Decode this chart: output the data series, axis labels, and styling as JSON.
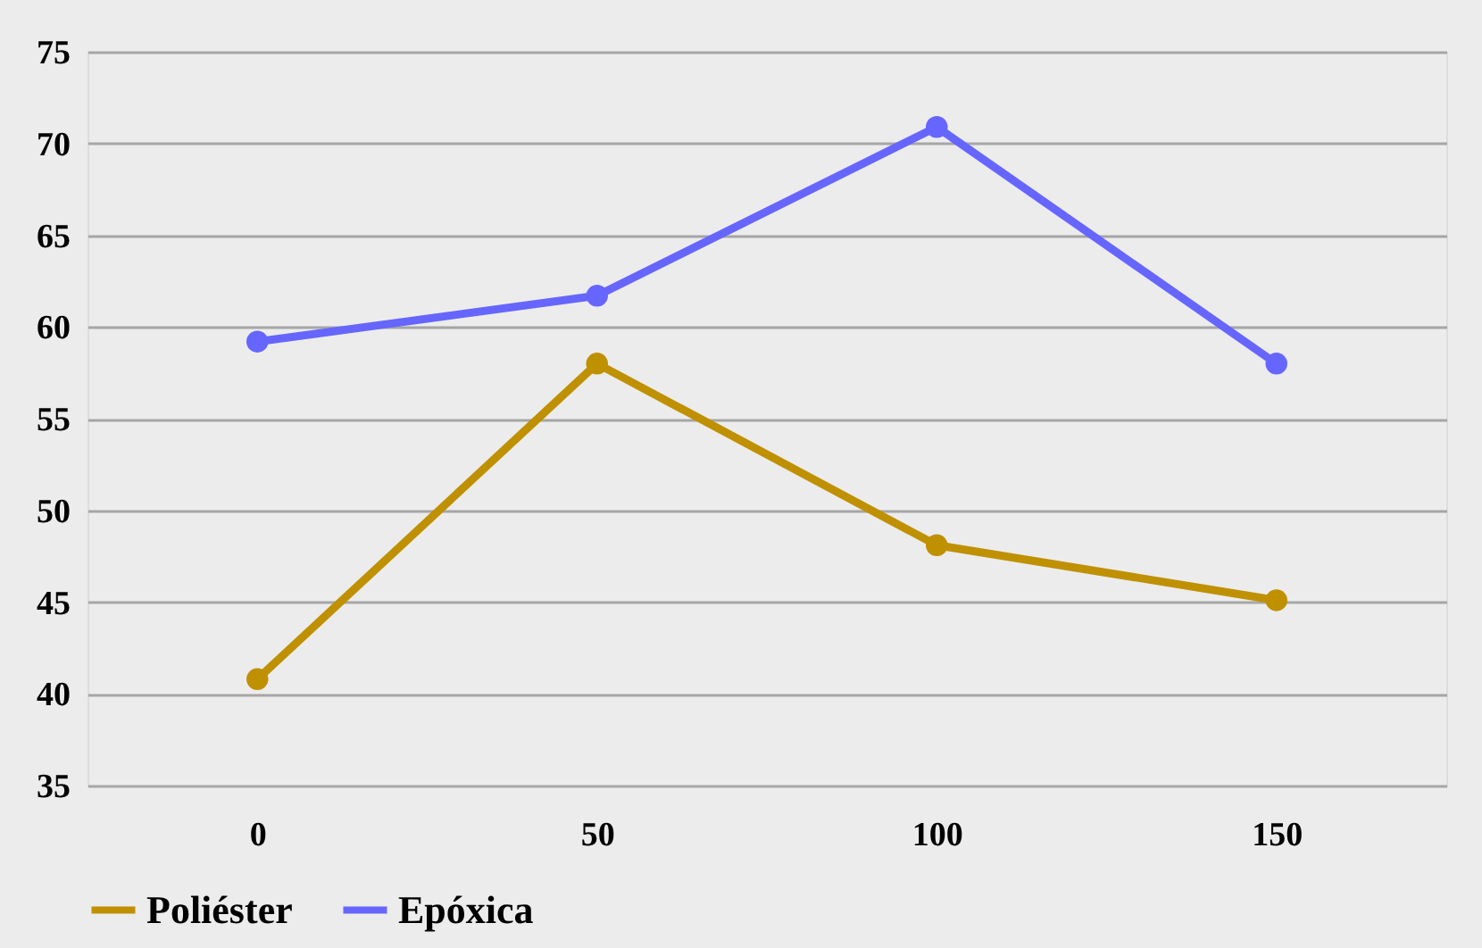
{
  "chart_data": {
    "type": "line",
    "categories": [
      "0",
      "50",
      "100",
      "150"
    ],
    "series": [
      {
        "name": "Poliéster",
        "color": "#bf9000",
        "values": [
          40.8,
          58.0,
          48.1,
          45.1
        ]
      },
      {
        "name": "Epóxica",
        "color": "#6666ff",
        "values": [
          59.2,
          61.7,
          70.9,
          58.0
        ]
      }
    ],
    "ylim": [
      35,
      75
    ],
    "yticks": [
      35,
      40,
      45,
      50,
      55,
      60,
      65,
      70,
      75
    ],
    "grid": "y",
    "legend": "bottom",
    "marker": "circle",
    "line_style": "solid"
  }
}
